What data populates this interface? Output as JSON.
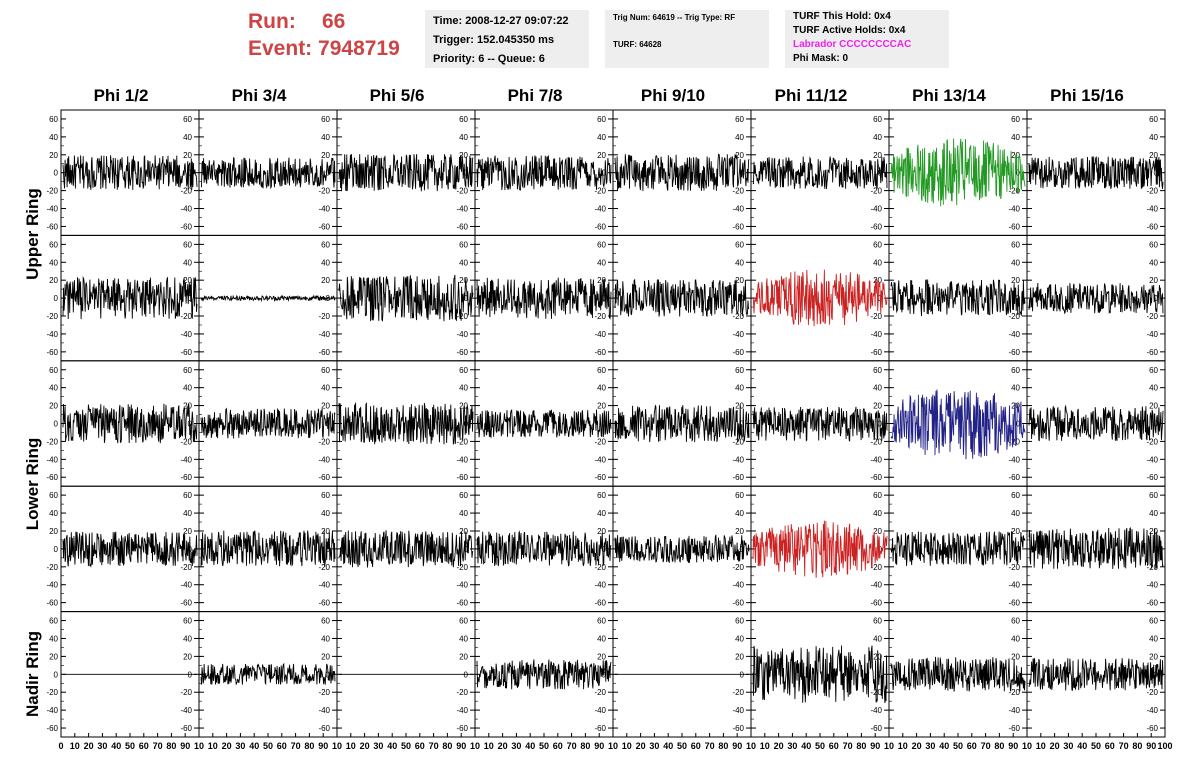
{
  "header": {
    "run_label": "Run:",
    "run_value": "66",
    "event_label": "Event:",
    "event_value": "7948719",
    "time": "Time: 2008-12-27 09:07:22",
    "trigger": "Trigger: 152.045350 ms",
    "priority": "Priority: 6 -- Queue: 6",
    "trig_num": "Trig Num: 64619 -- Trig Type: RF",
    "turf": "TURF: 64628",
    "turf_this_hold": "TURF This Hold: 0x4",
    "turf_active_holds": "TURF Active Holds: 0x4",
    "labrador": "Labrador CCCCCCCCAC",
    "phi_mask": "Phi Mask: 0"
  },
  "columns": [
    "Phi 1/2",
    "Phi 3/4",
    "Phi 5/6",
    "Phi 7/8",
    "Phi 9/10",
    "Phi 11/12",
    "Phi 13/14",
    "Phi 15/16"
  ],
  "rows": [
    "Upper Ring",
    "Lower Ring",
    "Nadir Ring"
  ],
  "colors": {
    "header_red": "#cc4444",
    "labrador_magenta": "#ee22ee",
    "info_box_bg": "#eeeeee",
    "trace_default": "#000000",
    "trace_green": "#229922",
    "trace_red": "#cc2222",
    "trace_blue": "#222288"
  },
  "chart_data": {
    "type": "line",
    "grid": false,
    "ylim": [
      -70,
      70
    ],
    "y_ticks": [
      -60,
      -40,
      -20,
      0,
      20,
      40,
      60
    ],
    "y_tick_labels": [
      "-60",
      "-40",
      "-20",
      "0",
      "20",
      "40",
      "60"
    ],
    "xlim": [
      0,
      100
    ],
    "x_tick_labels": [
      "0",
      "10",
      "20",
      "30",
      "40",
      "50",
      "60",
      "70",
      "80",
      "90",
      "10",
      "10",
      "20",
      "30",
      "40",
      "50",
      "60",
      "70",
      "80",
      "90",
      "10",
      "10",
      "20",
      "30",
      "40",
      "50",
      "60",
      "70",
      "80",
      "90",
      "10",
      "10",
      "20",
      "30",
      "40",
      "50",
      "60",
      "70",
      "80",
      "90",
      "10",
      "10",
      "20",
      "30",
      "40",
      "50",
      "60",
      "70",
      "80",
      "90",
      "10",
      "10",
      "20",
      "30",
      "40",
      "50",
      "60",
      "70",
      "80",
      "90",
      "10",
      "10",
      "20",
      "30",
      "40",
      "50",
      "60",
      "70",
      "80",
      "90",
      "10",
      "10",
      "20",
      "30",
      "40",
      "50",
      "60",
      "70",
      "80",
      "90",
      "100"
    ],
    "panels": [
      {
        "row": 0,
        "col": 0,
        "amplitude": 15,
        "color": "black"
      },
      {
        "row": 0,
        "col": 1,
        "amplitude": 13,
        "color": "black"
      },
      {
        "row": 0,
        "col": 2,
        "amplitude": 16,
        "color": "black"
      },
      {
        "row": 0,
        "col": 3,
        "amplitude": 15,
        "color": "black"
      },
      {
        "row": 0,
        "col": 4,
        "amplitude": 16,
        "color": "black"
      },
      {
        "row": 0,
        "col": 5,
        "amplitude": 14,
        "color": "black"
      },
      {
        "row": 0,
        "col": 6,
        "amplitude": 30,
        "color": "green"
      },
      {
        "row": 0,
        "col": 7,
        "amplitude": 14,
        "color": "black"
      },
      {
        "row": 1,
        "col": 0,
        "amplitude": 18,
        "color": "black"
      },
      {
        "row": 1,
        "col": 1,
        "amplitude": 2,
        "color": "black"
      },
      {
        "row": 1,
        "col": 2,
        "amplitude": 20,
        "color": "black"
      },
      {
        "row": 1,
        "col": 3,
        "amplitude": 18,
        "color": "black"
      },
      {
        "row": 1,
        "col": 4,
        "amplitude": 16,
        "color": "black"
      },
      {
        "row": 1,
        "col": 5,
        "amplitude": 25,
        "color": "red"
      },
      {
        "row": 1,
        "col": 6,
        "amplitude": 16,
        "color": "black"
      },
      {
        "row": 1,
        "col": 7,
        "amplitude": 13,
        "color": "black"
      },
      {
        "row": 2,
        "col": 0,
        "amplitude": 17,
        "color": "black"
      },
      {
        "row": 2,
        "col": 1,
        "amplitude": 13,
        "color": "black"
      },
      {
        "row": 2,
        "col": 2,
        "amplitude": 18,
        "color": "black"
      },
      {
        "row": 2,
        "col": 3,
        "amplitude": 12,
        "color": "black"
      },
      {
        "row": 2,
        "col": 4,
        "amplitude": 16,
        "color": "black"
      },
      {
        "row": 2,
        "col": 5,
        "amplitude": 15,
        "color": "black"
      },
      {
        "row": 2,
        "col": 6,
        "amplitude": 32,
        "color": "blue"
      },
      {
        "row": 2,
        "col": 7,
        "amplitude": 15,
        "color": "black"
      },
      {
        "row": 3,
        "col": 0,
        "amplitude": 15,
        "color": "black"
      },
      {
        "row": 3,
        "col": 1,
        "amplitude": 16,
        "color": "black"
      },
      {
        "row": 3,
        "col": 2,
        "amplitude": 16,
        "color": "black"
      },
      {
        "row": 3,
        "col": 3,
        "amplitude": 15,
        "color": "black"
      },
      {
        "row": 3,
        "col": 4,
        "amplitude": 12,
        "color": "black"
      },
      {
        "row": 3,
        "col": 5,
        "amplitude": 25,
        "color": "red"
      },
      {
        "row": 3,
        "col": 6,
        "amplitude": 15,
        "color": "black"
      },
      {
        "row": 3,
        "col": 7,
        "amplitude": 18,
        "color": "black"
      },
      {
        "row": 4,
        "col": 0,
        "amplitude": 0,
        "color": "black"
      },
      {
        "row": 4,
        "col": 1,
        "amplitude": 9,
        "color": "black"
      },
      {
        "row": 4,
        "col": 2,
        "amplitude": 0,
        "color": "black"
      },
      {
        "row": 4,
        "col": 3,
        "amplitude": 13,
        "color": "black"
      },
      {
        "row": 4,
        "col": 4,
        "amplitude": 0,
        "color": "black"
      },
      {
        "row": 4,
        "col": 5,
        "amplitude": 25,
        "color": "black"
      },
      {
        "row": 4,
        "col": 6,
        "amplitude": 15,
        "color": "black"
      },
      {
        "row": 4,
        "col": 7,
        "amplitude": 14,
        "color": "black"
      }
    ]
  }
}
